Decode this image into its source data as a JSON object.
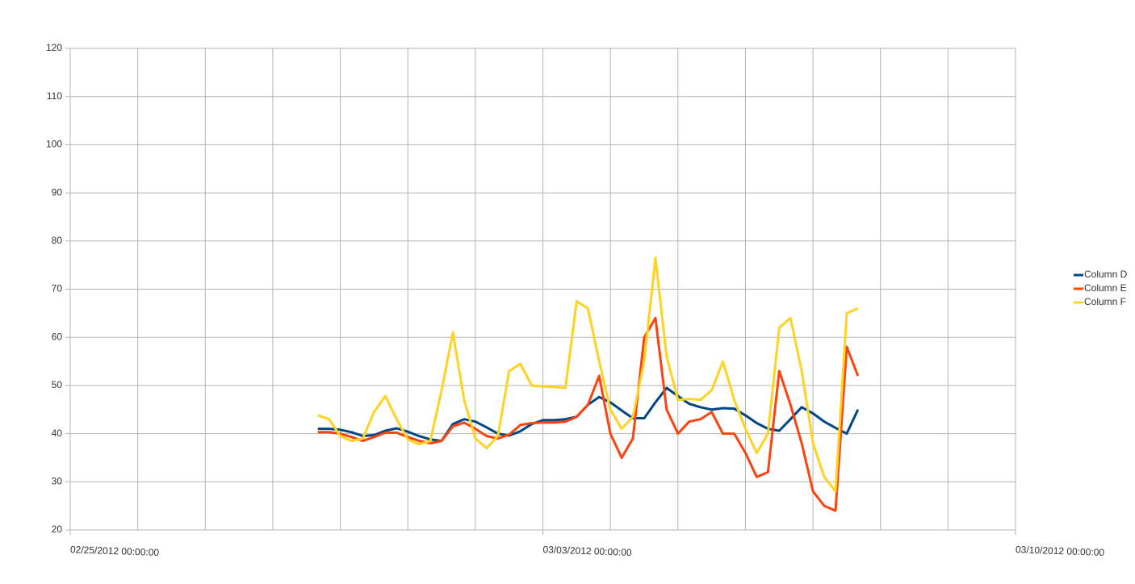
{
  "chart_data": {
    "type": "line",
    "x": [
      "02/28/2012 16:00:00",
      "02/28/2012 20:00:00",
      "02/29/2012 00:00:00",
      "02/29/2012 04:00:00",
      "02/29/2012 08:00:00",
      "02/29/2012 12:00:00",
      "02/29/2012 16:00:00",
      "02/29/2012 20:00:00",
      "03/01/2012 00:00:00",
      "03/01/2012 04:00:00",
      "03/01/2012 08:00:00",
      "03/01/2012 12:00:00",
      "03/01/2012 16:00:00",
      "03/01/2012 20:00:00",
      "03/02/2012 00:00:00",
      "03/02/2012 04:00:00",
      "03/02/2012 08:00:00",
      "03/02/2012 12:00:00",
      "03/02/2012 16:00:00",
      "03/02/2012 20:00:00",
      "03/03/2012 00:00:00",
      "03/03/2012 04:00:00",
      "03/03/2012 08:00:00",
      "03/03/2012 12:00:00",
      "03/03/2012 16:00:00",
      "03/03/2012 20:00:00",
      "03/04/2012 00:00:00",
      "03/04/2012 04:00:00",
      "03/04/2012 08:00:00",
      "03/04/2012 12:00:00",
      "03/04/2012 16:00:00",
      "03/04/2012 20:00:00",
      "03/05/2012 00:00:00",
      "03/05/2012 04:00:00",
      "03/05/2012 08:00:00",
      "03/05/2012 12:00:00",
      "03/05/2012 16:00:00",
      "03/05/2012 20:00:00",
      "03/06/2012 00:00:00",
      "03/06/2012 04:00:00",
      "03/06/2012 08:00:00",
      "03/06/2012 12:00:00",
      "03/06/2012 16:00:00",
      "03/06/2012 20:00:00",
      "03/07/2012 00:00:00",
      "03/07/2012 04:00:00",
      "03/07/2012 08:00:00",
      "03/07/2012 12:00:00",
      "03/07/2012 16:00:00"
    ],
    "series": [
      {
        "name": "Column D",
        "color": "#004586",
        "values": [
          41,
          41,
          40.8,
          40.3,
          39.5,
          39.7,
          40.6,
          41.1,
          40.4,
          39.5,
          38.8,
          38.5,
          42,
          43,
          42.5,
          41.3,
          40,
          39.6,
          40.5,
          42,
          42.8,
          42.8,
          43,
          43.5,
          46,
          47.6,
          46.5,
          44.8,
          43.2,
          43.2,
          46.5,
          49.5,
          47.8,
          46.2,
          45.5,
          45,
          45.3,
          45.2,
          43.8,
          42.2,
          41,
          40.6,
          43,
          45.5,
          44.2,
          42.5,
          41.2,
          40,
          45
        ]
      },
      {
        "name": "Column E",
        "color": "#ff420e",
        "values": [
          40.3,
          40.3,
          40,
          39.3,
          38.5,
          39.3,
          40.2,
          40.2,
          39.3,
          38.5,
          38,
          38.5,
          41.5,
          42.3,
          41,
          39.5,
          39,
          39.8,
          41.8,
          42.2,
          42.3,
          42.3,
          42.5,
          43.5,
          46,
          52,
          40,
          35,
          39,
          60,
          64,
          45,
          40,
          42.5,
          43,
          44.5,
          40,
          40,
          36,
          31,
          32,
          53,
          46,
          38,
          28,
          25,
          24,
          58,
          52
        ]
      },
      {
        "name": "Column F",
        "color": "#ffd320",
        "values": [
          43.8,
          43,
          39.5,
          38.5,
          39,
          44.5,
          47.8,
          43,
          38.8,
          37.8,
          38.5,
          49,
          61,
          47,
          39,
          37,
          39.5,
          53,
          54.5,
          50,
          49.8,
          49.7,
          49.5,
          67.5,
          66,
          55,
          45,
          41,
          43.5,
          55,
          76.5,
          56,
          47,
          47.2,
          47,
          49,
          55,
          47,
          41,
          36,
          40,
          62,
          64,
          53,
          38,
          31,
          28,
          65,
          66
        ]
      }
    ],
    "xlim": [
      "02/25/2012 00:00:00",
      "03/10/2012 00:00:00"
    ],
    "xticks": [
      "02/25/2012 00:00:00",
      "03/03/2012 00:00:00",
      "03/10/2012 00:00:00"
    ],
    "xminor_step_days": 1,
    "ylim": [
      20,
      120
    ],
    "yticks": [
      20,
      30,
      40,
      50,
      60,
      70,
      80,
      90,
      100,
      110,
      120
    ],
    "grid": true,
    "legend": "right"
  }
}
